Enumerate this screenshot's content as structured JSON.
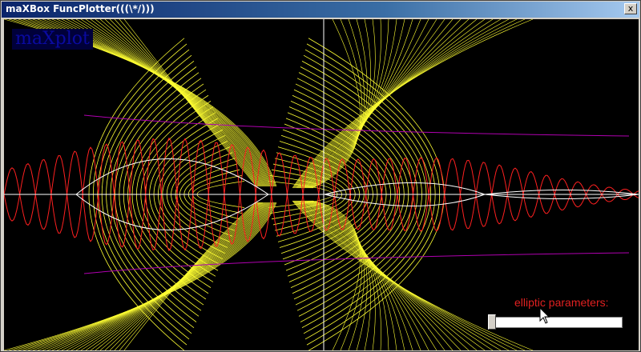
{
  "window": {
    "title": "maXBox FuncPlotter(((\\*/)))",
    "close_glyph": "x"
  },
  "canvas": {
    "background": "#000000",
    "logo_text": "maXplot"
  },
  "controls": {
    "param_label": "elliptic parameters:",
    "slider_value": 0
  },
  "colors": {
    "family_a": "#ffff33",
    "family_b": "#ff2020",
    "family_c": "#ffffff",
    "family_d": "#b000b0",
    "axes": "#ffffff",
    "label": "#e02020",
    "logo": "#0a0aa0"
  },
  "icons": {
    "close": "close-icon",
    "cursor": "mouse-pointer-icon"
  }
}
